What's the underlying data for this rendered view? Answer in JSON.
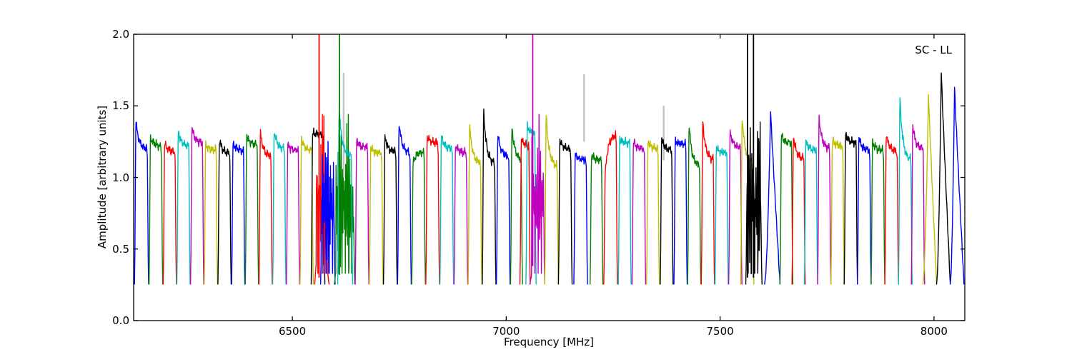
{
  "chart_data": {
    "type": "line",
    "title": "",
    "annotation": "SC - LL",
    "xlabel": "Frequency [MHz]",
    "ylabel": "Amplitude [arbitrary units]",
    "xlim": [
      6129,
      8072
    ],
    "ylim": [
      0.0,
      2.0
    ],
    "xticks": [
      6500,
      7000,
      7500,
      8000
    ],
    "xtick_labels": [
      "6500",
      "7000",
      "7500",
      "8000"
    ],
    "yticks": [
      0.0,
      0.5,
      1.0,
      1.5,
      2.0
    ],
    "ytick_labels": [
      "0.0",
      "0.5",
      "1.0",
      "1.5",
      "2.0"
    ],
    "grid": false,
    "legend": "none",
    "baseline_amplitude": 0.25,
    "colors": {
      "b": "#0000ff",
      "g": "#008000",
      "r": "#ff0000",
      "c": "#00bfbf",
      "m": "#bf00bf",
      "y": "#bfbf00",
      "k": "#000000",
      "gy": "#c3c3c3",
      "frame": "#000000",
      "background": "#ffffff"
    },
    "subband_columns": [
      "f_start_MHz",
      "f_end_MHz",
      "color",
      "top_amplitude",
      "left_peak_amplitude",
      "kind",
      "peak_freq_MHz",
      "peak_amplitude"
    ],
    "subbands": [
      [
        6131,
        6164,
        "b",
        1.2,
        1.39
      ],
      [
        6165,
        6197,
        "g",
        1.22,
        1.28
      ],
      [
        6198,
        6229,
        "r",
        1.18,
        1.24
      ],
      [
        6230,
        6261,
        "c",
        1.22,
        1.32
      ],
      [
        6262,
        6293,
        "m",
        1.24,
        1.35
      ],
      [
        6294,
        6325,
        "y",
        1.19,
        1.23
      ],
      [
        6326,
        6357,
        "k",
        1.17,
        1.26
      ],
      [
        6358,
        6389,
        "b",
        1.19,
        1.24
      ],
      [
        6390,
        6421,
        "g",
        1.23,
        1.29
      ],
      [
        6422,
        6453,
        "r",
        1.15,
        1.31
      ],
      [
        6454,
        6485,
        "c",
        1.2,
        1.33
      ],
      [
        6486,
        6517,
        "m",
        1.19,
        1.23
      ],
      [
        6518,
        6549,
        "y",
        1.19,
        1.27
      ],
      [
        6544,
        6576,
        "k",
        1.3,
        1.31
      ],
      [
        6552,
        6586,
        "r",
        0,
        0,
        "d"
      ],
      [
        6566,
        6600,
        "b",
        0,
        0,
        "d"
      ],
      [
        6598,
        6646,
        "g",
        0,
        0,
        "d"
      ],
      [
        6606,
        6641,
        "c",
        1.15,
        1.48
      ],
      [
        6647,
        6679,
        "m",
        1.21,
        1.26
      ],
      [
        6680,
        6712,
        "y",
        1.17,
        1.21
      ],
      [
        6713,
        6745,
        "k",
        1.18,
        1.28
      ],
      [
        6746,
        6778,
        "b",
        1.17,
        1.38
      ],
      [
        6779,
        6811,
        "g",
        1.18,
        1.1
      ],
      [
        6812,
        6844,
        "r",
        1.24,
        1.28
      ],
      [
        6845,
        6877,
        "c",
        1.2,
        1.29
      ],
      [
        6878,
        6910,
        "m",
        1.17,
        1.23
      ],
      [
        6911,
        6943,
        "y",
        1.1,
        1.36
      ],
      [
        6944,
        6976,
        "k",
        1.1,
        1.45
      ],
      [
        6977,
        7009,
        "b",
        1.15,
        1.3
      ],
      [
        7010,
        7038,
        "g",
        1.12,
        1.35
      ],
      [
        7032,
        7056,
        "r",
        1.22,
        1.27
      ],
      [
        7046,
        7070,
        "c",
        1.3,
        1.36
      ],
      [
        7055,
        7090,
        "m",
        0,
        0,
        "d"
      ],
      [
        7090,
        7122,
        "y",
        1.08,
        1.43
      ],
      [
        7122,
        7154,
        "k",
        1.2,
        1.26
      ],
      [
        7158,
        7190,
        "b",
        1.12,
        1.16
      ],
      [
        7196,
        7226,
        "g",
        1.12,
        1.16
      ],
      [
        7228,
        7260,
        "r",
        1.3,
        1.02
      ],
      [
        7262,
        7292,
        "c",
        1.24,
        1.27
      ],
      [
        7294,
        7326,
        "m",
        1.2,
        1.25
      ],
      [
        7328,
        7358,
        "y",
        1.2,
        1.26
      ],
      [
        7360,
        7390,
        "k",
        1.19,
        1.27
      ],
      [
        7392,
        7423,
        "b",
        1.23,
        1.26
      ],
      [
        7424,
        7455,
        "g",
        1.08,
        1.37
      ],
      [
        7456,
        7487,
        "r",
        1.12,
        1.39
      ],
      [
        7488,
        7519,
        "c",
        1.17,
        1.21
      ],
      [
        7520,
        7551,
        "m",
        1.21,
        1.31
      ],
      [
        7548,
        7579,
        "y",
        1.1,
        1.43
      ],
      [
        7560,
        7598,
        "k",
        0,
        0,
        "d"
      ],
      [
        7604,
        7640,
        "b",
        0,
        0,
        "t",
        7618,
        1.46
      ],
      [
        7640,
        7670,
        "g",
        1.24,
        1.29
      ],
      [
        7668,
        7699,
        "r",
        1.13,
        1.29
      ],
      [
        7697,
        7728,
        "c",
        1.19,
        1.25
      ],
      [
        7728,
        7759,
        "m",
        1.2,
        1.42
      ],
      [
        7759,
        7790,
        "y",
        1.22,
        1.26
      ],
      [
        7790,
        7821,
        "k",
        1.24,
        1.31
      ],
      [
        7821,
        7853,
        "b",
        1.19,
        1.28
      ],
      [
        7853,
        7885,
        "g",
        1.19,
        1.25
      ],
      [
        7885,
        7917,
        "r",
        1.18,
        1.31
      ],
      [
        7917,
        7949,
        "c",
        1.12,
        1.55
      ],
      [
        7947,
        7978,
        "m",
        1.2,
        1.36
      ],
      [
        7974,
        8006,
        "y",
        0,
        0,
        "t",
        7987,
        1.58
      ],
      [
        8006,
        8038,
        "k",
        0,
        0,
        "t",
        8017,
        1.73
      ],
      [
        8038,
        8070,
        "b",
        0,
        0,
        "t",
        8048,
        1.63
      ]
    ],
    "spike_columns": [
      "freq_MHz",
      "amp_from",
      "amp_to",
      "color"
    ],
    "spikes": [
      [
        6620.0,
        1.0,
        1.73,
        "gy"
      ],
      [
        7182.0,
        1.25,
        1.72,
        "gy"
      ],
      [
        7368.0,
        1.12,
        1.5,
        "gy"
      ],
      [
        6562.5,
        0.3,
        2.05,
        "r"
      ],
      [
        6610.0,
        0.32,
        2.05,
        "g"
      ],
      [
        7062.0,
        0.38,
        2.05,
        "m"
      ],
      [
        7564.0,
        0.3,
        2.05,
        "k"
      ],
      [
        7578.0,
        0.3,
        2.05,
        "k"
      ]
    ]
  }
}
